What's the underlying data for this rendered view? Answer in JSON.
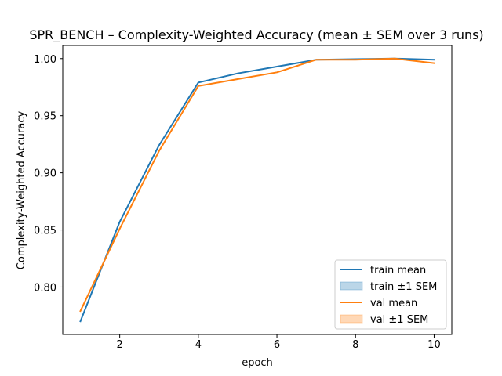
{
  "chart_data": {
    "type": "line",
    "title": "SPR_BENCH – Complexity-Weighted Accuracy (mean ± SEM over 3 runs)",
    "xlabel": "epoch",
    "ylabel": "Complexity-Weighted Accuracy",
    "xlim": [
      0.55,
      10.45
    ],
    "ylim": [
      0.7585,
      1.0115
    ],
    "x": [
      1,
      2,
      3,
      4,
      5,
      6,
      7,
      8,
      9,
      10
    ],
    "xticks": [
      2,
      4,
      6,
      8,
      10
    ],
    "yticks": [
      0.8,
      0.85,
      0.9,
      0.95,
      1.0
    ],
    "ytick_labels": [
      "0.80",
      "0.85",
      "0.90",
      "0.95",
      "1.00"
    ],
    "grid": false,
    "legend_position": "lower-right",
    "series": [
      {
        "name": "train mean",
        "color": "#1f77b4",
        "values": [
          0.77,
          0.857,
          0.924,
          0.979,
          0.987,
          0.993,
          0.999,
          0.9995,
          1.0,
          0.999
        ]
      },
      {
        "name": "val mean",
        "color": "#ff7f0e",
        "values": [
          0.779,
          0.851,
          0.919,
          0.976,
          0.982,
          0.988,
          0.999,
          0.999,
          1.0,
          0.996
        ]
      }
    ],
    "legend": [
      {
        "label": "train mean",
        "kind": "line",
        "color": "#1f77b4"
      },
      {
        "label": "train ±1 SEM",
        "kind": "patch",
        "color": "#1f77b4"
      },
      {
        "label": "val mean",
        "kind": "line",
        "color": "#ff7f0e"
      },
      {
        "label": "val ±1 SEM",
        "kind": "patch",
        "color": "#ff7f0e"
      }
    ]
  }
}
